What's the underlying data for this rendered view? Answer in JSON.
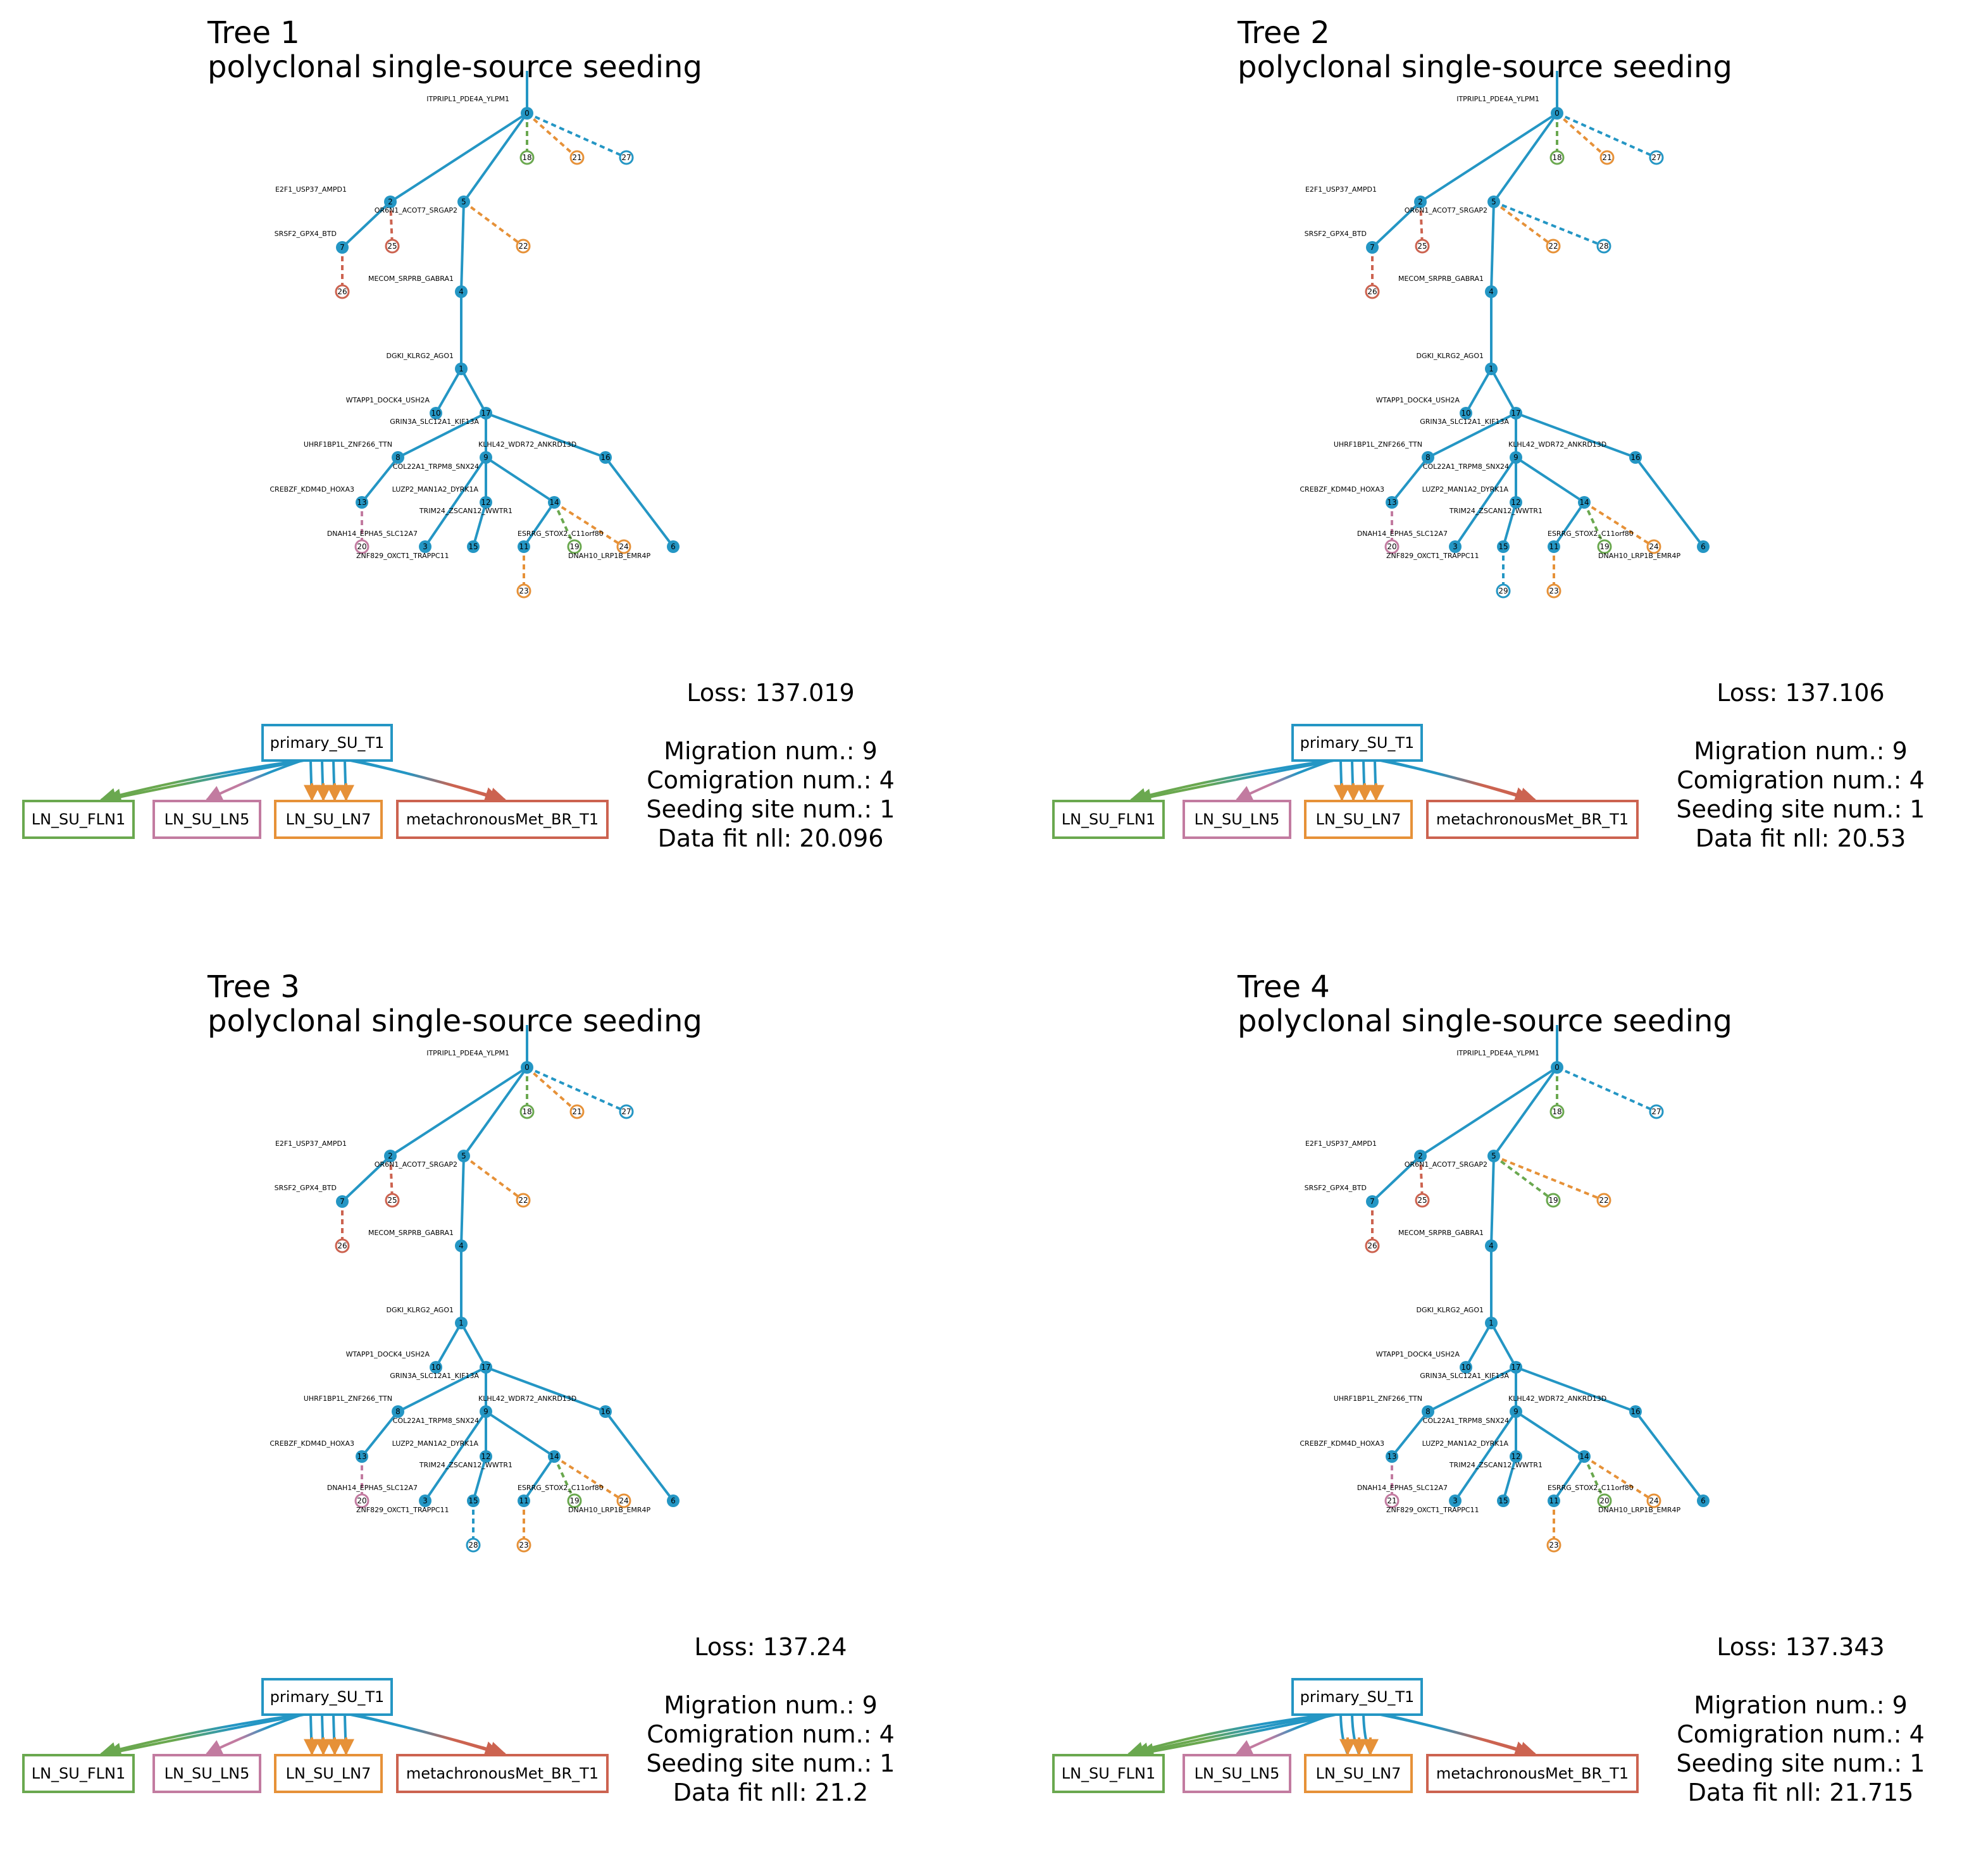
{
  "colors": {
    "primary_SU_T1": "#2496c4",
    "LN_SU_FLN1": "#6aa84f",
    "LN_SU_LN5": "#c27ba0",
    "LN_SU_LN7": "#e69138",
    "metachronousMet_BR_T1": "#cc6350"
  },
  "base_tree": {
    "nodes": [
      {
        "id": "0",
        "gene": "ITPRIPL1_PDE4A_YLPM1",
        "parent": null
      },
      {
        "id": "2",
        "gene": "E2F1_USP37_AMPD1",
        "parent": "0"
      },
      {
        "id": "5",
        "gene": "OR6N1_ACOT7_SRGAP2",
        "parent": "0"
      },
      {
        "id": "7",
        "gene": "SRSF2_GPX4_BTD",
        "parent": "2"
      },
      {
        "id": "4",
        "gene": "MECOM_SRPRB_GABRA1",
        "parent": "5"
      },
      {
        "id": "1",
        "gene": "DGKI_KLRG2_AGO1",
        "parent": "4"
      },
      {
        "id": "10",
        "gene": "WTAPP1_DOCK4_USH2A",
        "parent": "1"
      },
      {
        "id": "17",
        "gene": "GRIN3A_SLC12A1_KIF13A",
        "parent": "1"
      },
      {
        "id": "8",
        "gene": "UHRF1BP1L_ZNF266_TTN",
        "parent": "17"
      },
      {
        "id": "9",
        "gene": "KLHL42_WDR72_ANKRD13D",
        "parent": "17"
      },
      {
        "id": "16",
        "gene": "",
        "parent": "17"
      },
      {
        "id": "13",
        "gene": "CREBZF_KDM4D_HOXA3",
        "parent": "8"
      },
      {
        "id": "3",
        "gene": "DNAH14_EPHA5_SLC12A7",
        "parent": "9"
      },
      {
        "id": "12",
        "gene": "LUZP2_MAN1A2_DYRK1A",
        "parent": "9"
      },
      {
        "id": "14",
        "gene": "COL22A1_TRPM8_SNX24",
        "parent": "9"
      },
      {
        "id": "15",
        "gene": "",
        "parent": "12"
      },
      {
        "id": "11",
        "gene": "TRIM24_ZSCAN12_WWTR1",
        "parent": "14"
      },
      {
        "id": "6",
        "gene": "",
        "parent": "16"
      }
    ],
    "extra_labels": [
      {
        "text": "ESRRG_STOX2_C11orf80",
        "near": "14"
      },
      {
        "text": "ZNF829_OXCT1_TRAPPC11",
        "near": "3"
      },
      {
        "text": "DNAH10_LRP1B_EMR4P",
        "near": "24"
      }
    ]
  },
  "trees": [
    {
      "title": "Tree 1",
      "subtitle": "polyclonal single-source seeding",
      "loss": "Loss: 137.019",
      "migration": "Migration num.: 9",
      "comigration": "Comigration num.: 4",
      "seeding": "Seeding site num.: 1",
      "fit": "Data fit nll: 20.096",
      "leaves": [
        {
          "id": "18",
          "parent": "0",
          "site": "LN_SU_FLN1"
        },
        {
          "id": "21",
          "parent": "0",
          "site": "LN_SU_LN7"
        },
        {
          "id": "27",
          "parent": "0",
          "site": "primary_SU_T1"
        },
        {
          "id": "25",
          "parent": "2",
          "site": "metachronousMet_BR_T1"
        },
        {
          "id": "22",
          "parent": "5",
          "site": "LN_SU_LN7"
        },
        {
          "id": "26",
          "parent": "7",
          "site": "metachronousMet_BR_T1"
        },
        {
          "id": "20",
          "parent": "13",
          "site": "LN_SU_LN5"
        },
        {
          "id": "19",
          "parent": "14",
          "site": "LN_SU_FLN1"
        },
        {
          "id": "24",
          "parent": "14",
          "site": "LN_SU_LN7"
        },
        {
          "id": "23",
          "parent": "11",
          "site": "LN_SU_LN7"
        }
      ],
      "migration_graph": {
        "source": "primary_SU_T1",
        "targets": [
          "LN_SU_FLN1",
          "LN_SU_LN5",
          "LN_SU_LN7",
          "metachronousMet_BR_T1"
        ],
        "edge_counts": [
          2,
          1,
          4,
          2
        ]
      }
    },
    {
      "title": "Tree 2",
      "subtitle": "polyclonal single-source seeding",
      "loss": "Loss: 137.106",
      "migration": "Migration num.: 9",
      "comigration": "Comigration num.: 4",
      "seeding": "Seeding site num.: 1",
      "fit": "Data fit nll: 20.53",
      "leaves": [
        {
          "id": "18",
          "parent": "0",
          "site": "LN_SU_FLN1"
        },
        {
          "id": "21",
          "parent": "0",
          "site": "LN_SU_LN7"
        },
        {
          "id": "27",
          "parent": "0",
          "site": "primary_SU_T1"
        },
        {
          "id": "25",
          "parent": "2",
          "site": "metachronousMet_BR_T1"
        },
        {
          "id": "22",
          "parent": "5",
          "site": "LN_SU_LN7"
        },
        {
          "id": "28",
          "parent": "5",
          "site": "primary_SU_T1"
        },
        {
          "id": "26",
          "parent": "7",
          "site": "metachronousMet_BR_T1"
        },
        {
          "id": "20",
          "parent": "13",
          "site": "LN_SU_LN5"
        },
        {
          "id": "19",
          "parent": "14",
          "site": "LN_SU_FLN1"
        },
        {
          "id": "24",
          "parent": "14",
          "site": "LN_SU_LN7"
        },
        {
          "id": "29",
          "parent": "15",
          "site": "primary_SU_T1"
        },
        {
          "id": "23",
          "parent": "11",
          "site": "LN_SU_LN7"
        }
      ],
      "migration_graph": {
        "source": "primary_SU_T1",
        "targets": [
          "LN_SU_FLN1",
          "LN_SU_LN5",
          "LN_SU_LN7",
          "metachronousMet_BR_T1"
        ],
        "edge_counts": [
          2,
          1,
          4,
          2
        ]
      }
    },
    {
      "title": "Tree 3",
      "subtitle": "polyclonal single-source seeding",
      "loss": "Loss: 137.24",
      "migration": "Migration num.: 9",
      "comigration": "Comigration num.: 4",
      "seeding": "Seeding site num.: 1",
      "fit": "Data fit nll: 21.2",
      "leaves": [
        {
          "id": "18",
          "parent": "0",
          "site": "LN_SU_FLN1"
        },
        {
          "id": "21",
          "parent": "0",
          "site": "LN_SU_LN7"
        },
        {
          "id": "27",
          "parent": "0",
          "site": "primary_SU_T1"
        },
        {
          "id": "25",
          "parent": "2",
          "site": "metachronousMet_BR_T1"
        },
        {
          "id": "22",
          "parent": "5",
          "site": "LN_SU_LN7"
        },
        {
          "id": "26",
          "parent": "7",
          "site": "metachronousMet_BR_T1"
        },
        {
          "id": "20",
          "parent": "13",
          "site": "LN_SU_LN5"
        },
        {
          "id": "19",
          "parent": "14",
          "site": "LN_SU_FLN1"
        },
        {
          "id": "24",
          "parent": "14",
          "site": "LN_SU_LN7"
        },
        {
          "id": "28",
          "parent": "15",
          "site": "primary_SU_T1"
        },
        {
          "id": "23",
          "parent": "11",
          "site": "LN_SU_LN7"
        }
      ],
      "migration_graph": {
        "source": "primary_SU_T1",
        "targets": [
          "LN_SU_FLN1",
          "LN_SU_LN5",
          "LN_SU_LN7",
          "metachronousMet_BR_T1"
        ],
        "edge_counts": [
          2,
          1,
          4,
          2
        ]
      }
    },
    {
      "title": "Tree 4",
      "subtitle": "polyclonal single-source seeding",
      "loss": "Loss: 137.343",
      "migration": "Migration num.: 9",
      "comigration": "Comigration num.: 4",
      "seeding": "Seeding site num.: 1",
      "fit": "Data fit nll: 21.715",
      "leaves": [
        {
          "id": "18",
          "parent": "0",
          "site": "LN_SU_FLN1"
        },
        {
          "id": "27",
          "parent": "0",
          "site": "primary_SU_T1"
        },
        {
          "id": "25",
          "parent": "2",
          "site": "metachronousMet_BR_T1"
        },
        {
          "id": "19",
          "parent": "5",
          "site": "LN_SU_FLN1"
        },
        {
          "id": "22",
          "parent": "5",
          "site": "LN_SU_LN7"
        },
        {
          "id": "26",
          "parent": "7",
          "site": "metachronousMet_BR_T1"
        },
        {
          "id": "21",
          "parent": "13",
          "site": "LN_SU_LN5"
        },
        {
          "id": "20",
          "parent": "14",
          "site": "LN_SU_FLN1"
        },
        {
          "id": "24",
          "parent": "14",
          "site": "LN_SU_LN7"
        },
        {
          "id": "23",
          "parent": "11",
          "site": "LN_SU_LN7"
        }
      ],
      "migration_graph": {
        "source": "primary_SU_T1",
        "targets": [
          "LN_SU_FLN1",
          "LN_SU_LN5",
          "LN_SU_LN7",
          "metachronousMet_BR_T1"
        ],
        "edge_counts": [
          3,
          1,
          3,
          2
        ]
      }
    }
  ]
}
